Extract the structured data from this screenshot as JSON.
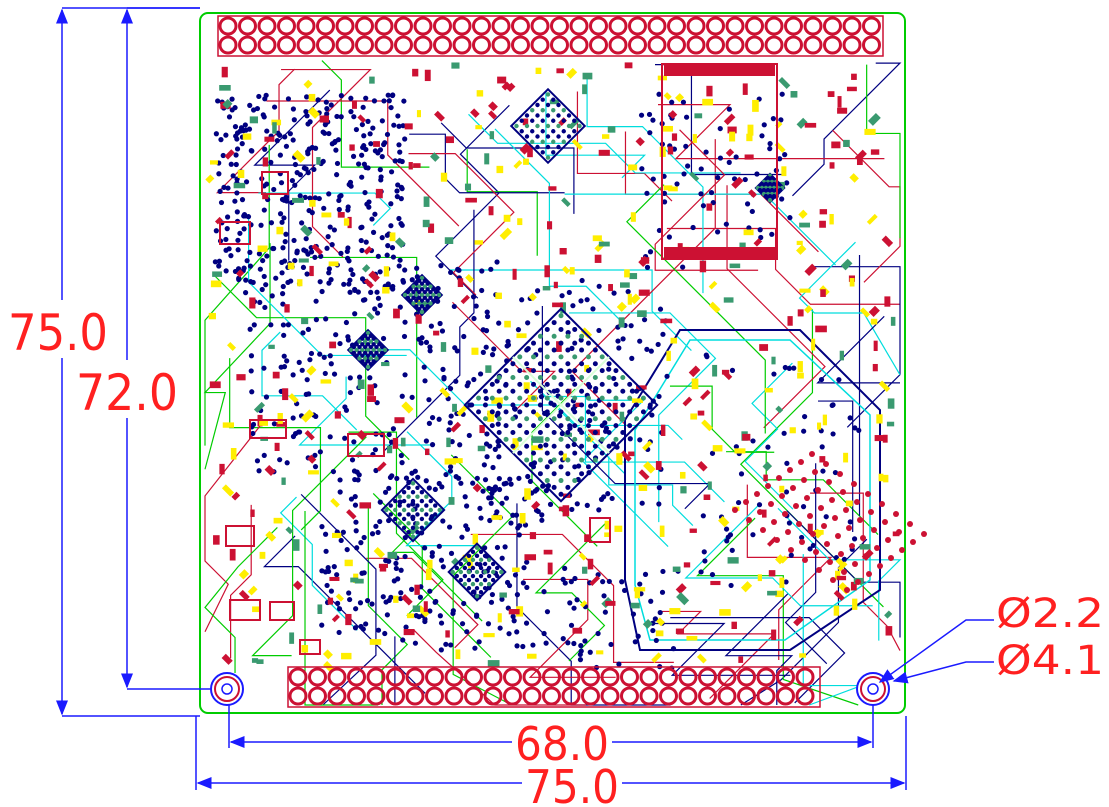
{
  "drawing": {
    "dimensions": {
      "outer_height": "75.0",
      "inner_height": "72.0",
      "inner_width": "68.0",
      "outer_width": "75.0",
      "hole_inner_diameter": "Ø2.2",
      "hole_outer_diameter": "Ø4.1"
    },
    "colors": {
      "dimension_line": "#1a1aff",
      "dimension_text": "#ff2020",
      "board_outline": "#00cc00",
      "copper_red": "#cc1133",
      "silk_yellow": "#ffee00",
      "via_blue": "#000080",
      "trace_cyan": "#00dddd",
      "pad_green": "#3a9a70"
    }
  }
}
